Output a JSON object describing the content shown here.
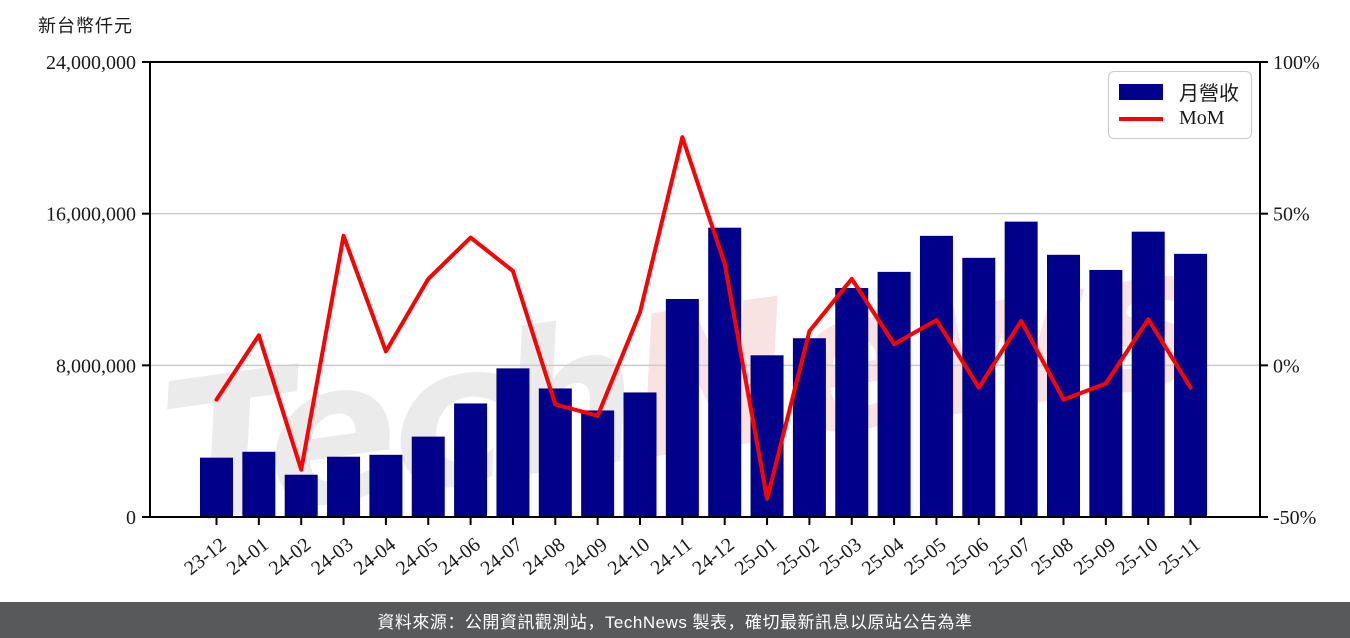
{
  "header": {
    "axis_unit_label": "新台幣仟元"
  },
  "legend": {
    "revenue_label": "月營收",
    "mom_label": "MoM"
  },
  "watermark": {
    "part1": "Tech",
    "part2": "News"
  },
  "footer": {
    "source_text": "資料來源：公開資訊觀測站，TechNews 製表，確切最新訊息以原站公告為準"
  },
  "colors": {
    "bar": "#00008B",
    "line": "#FF0000",
    "grid": "#cccccc",
    "axis": "#000000",
    "tick_text": "#1a1a1a",
    "footer_bg": "#58595B",
    "watermark_gray": "#ebebeb",
    "watermark_pink": "#f9e2e2"
  },
  "chart_data": {
    "type": "bar+line combo",
    "title": "",
    "categories": [
      "23-12",
      "24-01",
      "24-02",
      "24-03",
      "24-04",
      "24-05",
      "24-06",
      "24-07",
      "24-08",
      "24-09",
      "24-10",
      "24-11",
      "24-12",
      "25-01",
      "25-02",
      "25-03",
      "25-04",
      "25-05",
      "25-06",
      "25-07",
      "25-08",
      "25-09",
      "25-10",
      "25-11"
    ],
    "series": [
      {
        "name": "月營收",
        "type": "bar",
        "axis": "left",
        "unit": "新台幣仟元",
        "values": [
          3130000,
          3440000,
          2230000,
          3180000,
          3280000,
          4240000,
          5990000,
          7840000,
          6780000,
          5620000,
          6570000,
          11500000,
          15260000,
          8530000,
          9430000,
          12080000,
          12930000,
          14830000,
          13670000,
          15580000,
          13830000,
          13030000,
          15050000,
          13880000
        ]
      },
      {
        "name": "MoM",
        "type": "line",
        "axis": "right",
        "unit": "%",
        "values": [
          -11.3,
          9.9,
          -34.4,
          42.7,
          4.6,
          28.5,
          42.1,
          31.1,
          -12.9,
          -16.6,
          17.5,
          75.2,
          33.4,
          -44.0,
          11.3,
          28.5,
          7.0,
          14.9,
          -7.3,
          14.6,
          -11.3,
          -6.0,
          15.2,
          -7.3
        ]
      }
    ],
    "left_axis": {
      "label": "新台幣仟元",
      "range": [
        0,
        24000000
      ],
      "tick_values": [
        0,
        8000000,
        16000000,
        24000000
      ],
      "tick_labels": [
        "0",
        "8,000,000",
        "16,000,000",
        "24,000,000"
      ]
    },
    "right_axis": {
      "label": "MoM",
      "range_pct": [
        -50,
        100
      ],
      "tick_values_pct": [
        -50,
        0,
        50,
        100
      ],
      "tick_labels": [
        "-50%",
        "0%",
        "50%",
        "100%"
      ]
    },
    "grid": true,
    "legend_position": "top-right",
    "x_label_rotation_deg": -38
  }
}
